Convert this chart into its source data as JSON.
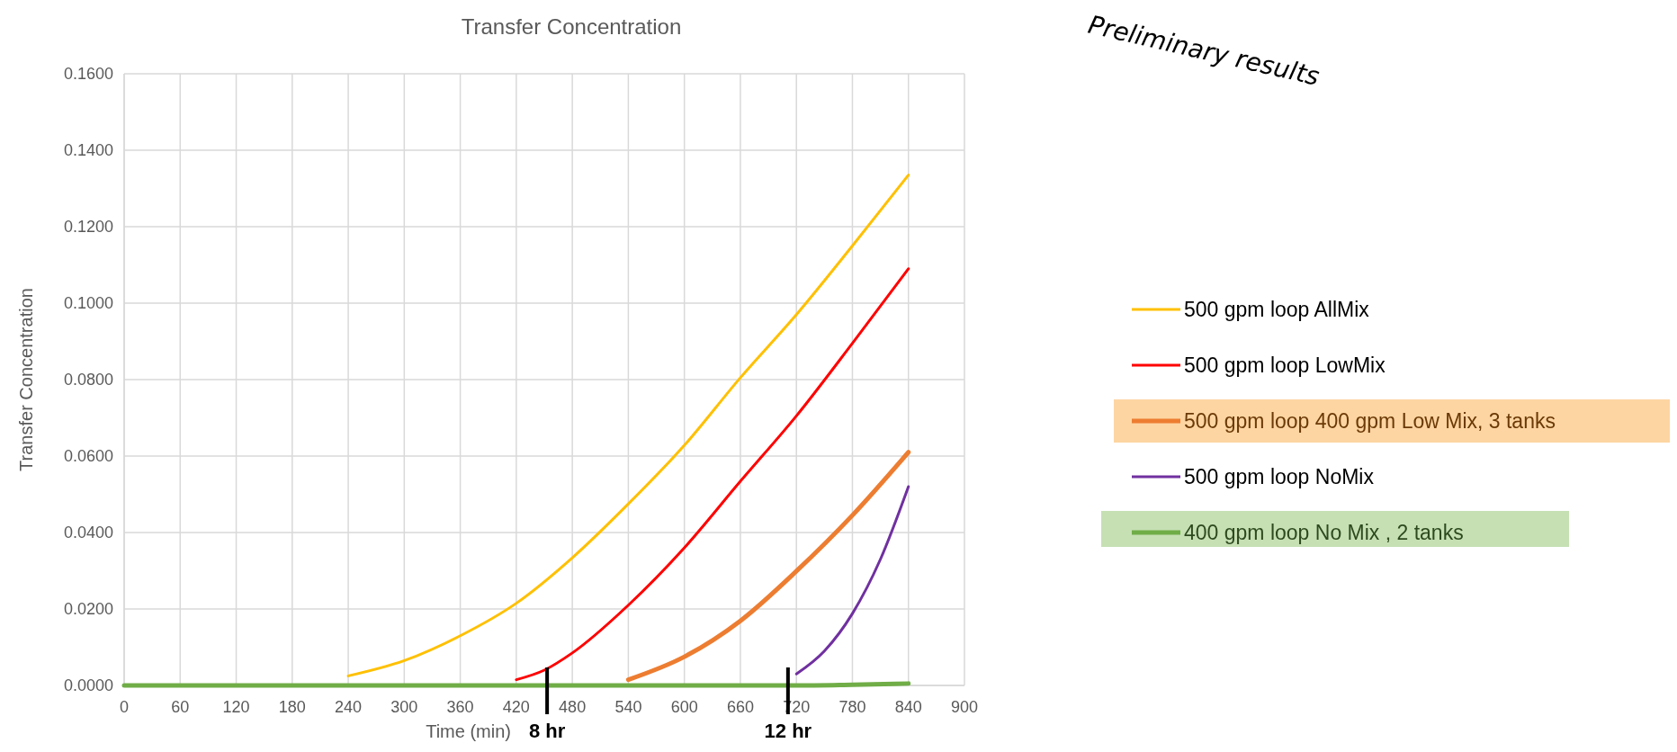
{
  "chart_data": {
    "type": "line",
    "title": "Transfer Concentration",
    "xlabel": "Time (min)",
    "ylabel": "Transfer Concentration",
    "xlim": [
      0,
      900
    ],
    "xticks": [
      0,
      60,
      120,
      180,
      240,
      300,
      360,
      420,
      480,
      540,
      600,
      660,
      720,
      780,
      840,
      900
    ],
    "ylim": [
      0,
      0.16
    ],
    "yticks": [
      {
        "value": 0,
        "label": "0.0000"
      },
      {
        "value": 0.02,
        "label": "0.0200"
      },
      {
        "value": 0.04,
        "label": "0.0400"
      },
      {
        "value": 0.06,
        "label": "0.0600"
      },
      {
        "value": 0.08,
        "label": "0.0800"
      },
      {
        "value": 0.1,
        "label": "0.1000"
      },
      {
        "value": 0.12,
        "label": "0.1200"
      },
      {
        "value": 0.14,
        "label": "0.1400"
      },
      {
        "value": 0.16,
        "label": "0.1600"
      }
    ],
    "grid": true,
    "legend": "right",
    "marker": "none",
    "line_style": "solid",
    "series": [
      {
        "name": "500 gpm loop AllMix",
        "color": "#ffc000",
        "x": [
          240,
          300,
          360,
          420,
          480,
          540,
          600,
          660,
          720,
          780,
          840
        ],
        "values": [
          0.0025,
          0.0065,
          0.013,
          0.0215,
          0.0334,
          0.0475,
          0.0628,
          0.0805,
          0.097,
          0.115,
          0.1335
        ]
      },
      {
        "name": "500 gpm loop LowMix",
        "color": "#ff0000",
        "x": [
          420,
          450,
          480,
          540,
          600,
          660,
          720,
          780,
          840
        ],
        "values": [
          0.0015,
          0.004,
          0.0085,
          0.021,
          0.036,
          0.0534,
          0.0705,
          0.0895,
          0.109
        ]
      },
      {
        "name": "500 gpm loop 400 gpm Low Mix, 3 tanks",
        "color": "#ed7d31",
        "x": [
          540,
          600,
          660,
          720,
          780,
          840
        ],
        "values": [
          0.0015,
          0.0075,
          0.0169,
          0.0299,
          0.0445,
          0.061
        ]
      },
      {
        "name": "500 gpm loop NoMix",
        "color": "#7030a0",
        "x": [
          720,
          750,
          780,
          810,
          840
        ],
        "values": [
          0.003,
          0.009,
          0.0188,
          0.033,
          0.052
        ]
      },
      {
        "name": "400 gpm loop No Mix , 2 tanks",
        "color": "#70ad47",
        "x": [
          0,
          120,
          240,
          360,
          480,
          600,
          720,
          780,
          840
        ],
        "values": [
          0,
          0,
          0,
          0,
          0,
          0,
          0,
          0.0002,
          0.0005
        ]
      }
    ],
    "ref_lines": [
      {
        "axis": "x",
        "value": 453,
        "label": "8 hr",
        "color": "#000000"
      },
      {
        "axis": "x",
        "value": 711,
        "label": "12 hr",
        "color": "#000000"
      }
    ],
    "annotations": [
      "Preliminary results"
    ]
  }
}
